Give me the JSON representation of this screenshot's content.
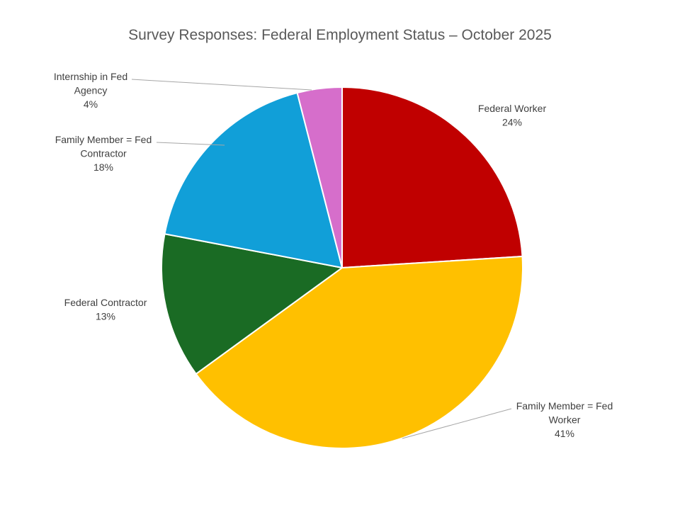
{
  "chart_data": {
    "type": "pie",
    "title": "Survey Responses: Federal Employment Status – October 2025",
    "slices": [
      {
        "name": "Federal Worker",
        "label_lines": [
          "Federal Worker"
        ],
        "value": 24,
        "value_label": "24%",
        "color": "#C00000"
      },
      {
        "name": "Family Member = Fed Worker",
        "label_lines": [
          "Family Member = Fed",
          "Worker"
        ],
        "value": 41,
        "value_label": "41%",
        "color": "#FFC000"
      },
      {
        "name": "Federal Contractor",
        "label_lines": [
          "Federal Contractor"
        ],
        "value": 13,
        "value_label": "13%",
        "color": "#1A6B24"
      },
      {
        "name": "Family Member = Fed Contractor",
        "label_lines": [
          "Family Member = Fed",
          "Contractor"
        ],
        "value": 18,
        "value_label": "18%",
        "color": "#119FD8"
      },
      {
        "name": "Internship in Fed Agency",
        "label_lines": [
          "Internship in Fed",
          "Agency"
        ],
        "value": 4,
        "value_label": "4%",
        "color": "#D66ECB"
      }
    ],
    "start_angle": "12 o'clock",
    "direction": "clockwise",
    "legend": "none"
  }
}
